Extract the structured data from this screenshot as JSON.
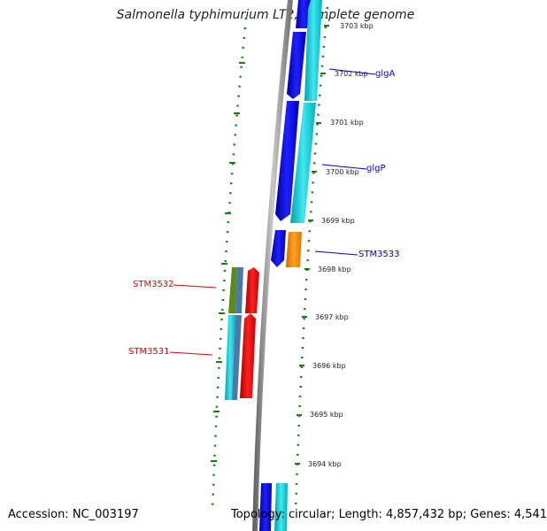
{
  "title": "Salmonella typhimurium LT2, complete genome",
  "accession": "Accession: NC_003197",
  "summary": "Topology: circular; Length: 4,857,432 bp; Genes: 4,541",
  "colors": {
    "backbone": "#8a8a8a",
    "tick": "#1a7a1a",
    "cds_forward": "#0000ee",
    "cds_forward_alt": "#00c8d0",
    "cds_orange": "#ff8c00",
    "cds_red": "#ee0000",
    "cds_olive": "#5a8a1a",
    "cds_steel": "#4a7aaa",
    "label_blue": "#0000cc",
    "label_red": "#dd0000"
  },
  "kbp_labels": [
    "3703 kbp",
    "3702 kbp",
    "3701 kbp",
    "3700 kbp",
    "3699 kbp",
    "3698 kbp",
    "3697 kbp",
    "3696 kbp",
    "3695 kbp",
    "3694 kbp"
  ],
  "gene_labels": {
    "glgA": "glgA",
    "glgP": "glgP",
    "STM3533": "STM3533",
    "STM3532": "STM3532",
    "STM3531": "STM3531"
  }
}
